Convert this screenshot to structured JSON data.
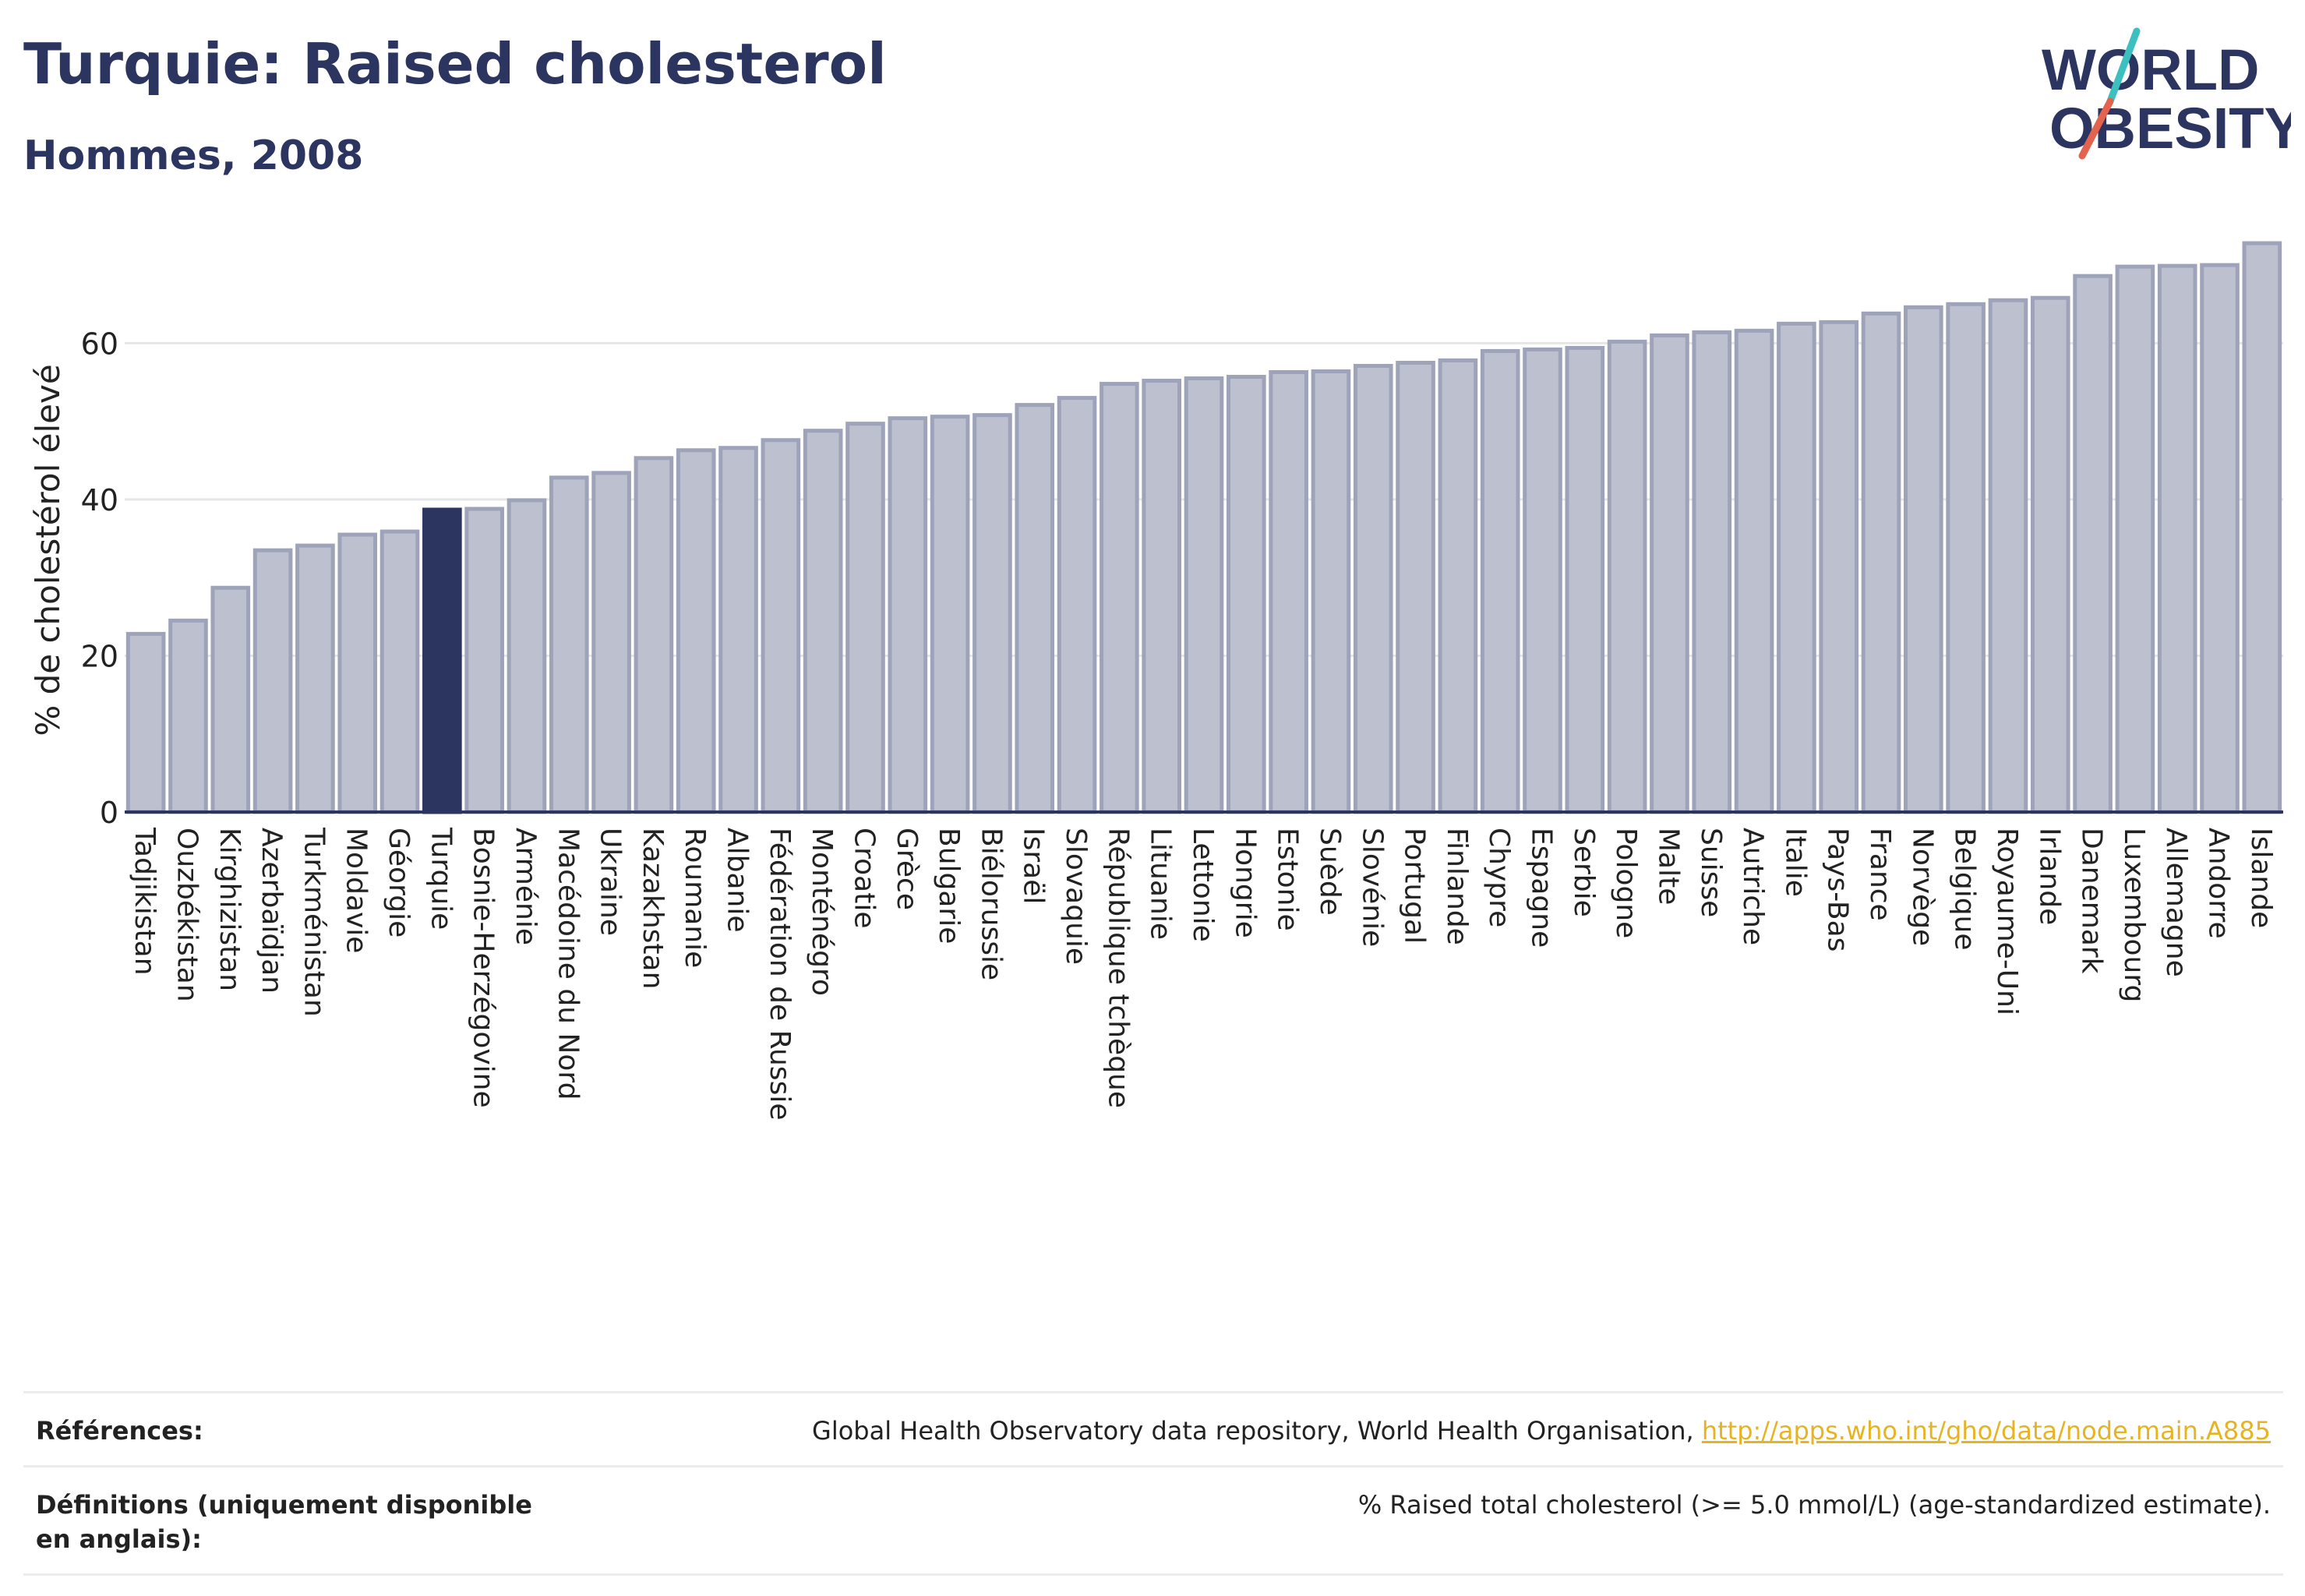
{
  "header": {
    "title": "Turquie: Raised cholesterol",
    "subtitle": "Hommes, 2008"
  },
  "logo": {
    "line1": "WORLD",
    "line2": "OBESITY"
  },
  "colors": {
    "highlight": "#2b3560",
    "bar_fill": "#bcc0cf",
    "bar_stroke": "#9ea3ba",
    "gridline": "#e6e6e6",
    "logo_teal": "#3bbfbf",
    "logo_red": "#e4634f"
  },
  "chart_data": {
    "type": "bar",
    "ylabel": "% de cholestérol élevé",
    "ylim": [
      0,
      75
    ],
    "yticks": [
      0,
      20,
      40,
      60
    ],
    "grid": true,
    "highlight": "Turquie",
    "categories": [
      "Tadjikistan",
      "Ouzbékistan",
      "Kirghizistan",
      "Azerbaïdjan",
      "Turkménistan",
      "Moldavie",
      "Géorgie",
      "Turquie",
      "Bosnie-Herzégovine",
      "Arménie",
      "Macédoine du Nord",
      "Ukraine",
      "Kazakhstan",
      "Roumanie",
      "Albanie",
      "Fédération de Russie",
      "Monténégro",
      "Croatie",
      "Grèce",
      "Bulgarie",
      "Biélorussie",
      "Israël",
      "Slovaquie",
      "République tchèque",
      "Lituanie",
      "Lettonie",
      "Hongrie",
      "Estonie",
      "Suède",
      "Slovénie",
      "Portugal",
      "Finlande",
      "Chypre",
      "Espagne",
      "Serbie",
      "Pologne",
      "Malte",
      "Suisse",
      "Autriche",
      "Italie",
      "Pays-Bas",
      "France",
      "Norvège",
      "Belgique",
      "Royaume-Uni",
      "Irlande",
      "Danemark",
      "Luxembourg",
      "Allemagne",
      "Andorre",
      "Islande"
    ],
    "values": [
      22.8,
      24.5,
      28.7,
      33.5,
      34.1,
      35.5,
      35.9,
      38.7,
      38.8,
      39.9,
      42.8,
      43.4,
      45.3,
      46.3,
      46.6,
      47.6,
      48.8,
      49.7,
      50.4,
      50.6,
      50.8,
      52.1,
      53.0,
      54.8,
      55.2,
      55.5,
      55.7,
      56.3,
      56.4,
      57.1,
      57.5,
      57.8,
      59.0,
      59.2,
      59.4,
      60.2,
      61.0,
      61.4,
      61.6,
      62.5,
      62.7,
      63.8,
      64.6,
      65.0,
      65.5,
      65.8,
      68.6,
      69.8,
      69.9,
      70.0,
      72.8
    ]
  },
  "footer": {
    "references_label": "Références:",
    "references_text": "Global Health Observatory data repository, World Health Organisation,",
    "references_link": "http://apps.who.int/gho/data/node.main.A885",
    "definitions_label": "Définitions (uniquement disponible en anglais):",
    "definitions_text": "% Raised total cholesterol (>= 5.0 mmol/L) (age-standardized estimate)."
  }
}
